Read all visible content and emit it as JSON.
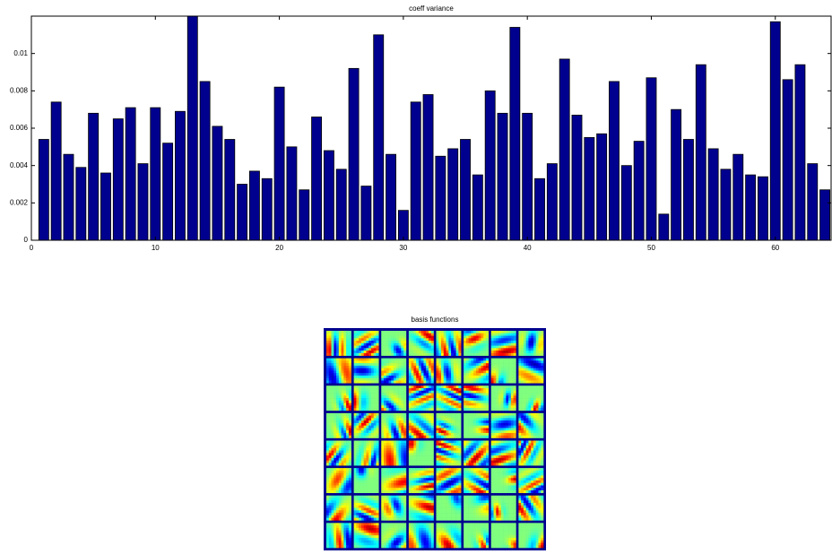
{
  "chart_data": [
    {
      "type": "bar",
      "title": "coeff variance",
      "x": [
        1,
        2,
        3,
        4,
        5,
        6,
        7,
        8,
        9,
        10,
        11,
        12,
        13,
        14,
        15,
        16,
        17,
        18,
        19,
        20,
        21,
        22,
        23,
        24,
        25,
        26,
        27,
        28,
        29,
        30,
        31,
        32,
        33,
        34,
        35,
        36,
        37,
        38,
        39,
        40,
        41,
        42,
        43,
        44,
        45,
        46,
        47,
        48,
        49,
        50,
        51,
        52,
        53,
        54,
        55,
        56,
        57,
        58,
        59,
        60,
        61,
        62,
        63,
        64
      ],
      "values": [
        0.0054,
        0.0074,
        0.0046,
        0.0039,
        0.0068,
        0.0036,
        0.0065,
        0.0071,
        0.0041,
        0.0071,
        0.0052,
        0.0069,
        0.012,
        0.0085,
        0.0061,
        0.0054,
        0.003,
        0.0037,
        0.0033,
        0.0082,
        0.005,
        0.0027,
        0.0066,
        0.0048,
        0.0038,
        0.0092,
        0.0029,
        0.011,
        0.0046,
        0.0016,
        0.0074,
        0.0078,
        0.0045,
        0.0049,
        0.0054,
        0.0035,
        0.008,
        0.0068,
        0.0114,
        0.0068,
        0.0033,
        0.0041,
        0.0097,
        0.0067,
        0.0055,
        0.0057,
        0.0085,
        0.004,
        0.0053,
        0.0087,
        0.0014,
        0.007,
        0.0054,
        0.0094,
        0.0049,
        0.0038,
        0.0046,
        0.0035,
        0.0034,
        0.0117,
        0.0086,
        0.0094,
        0.0041,
        0.0027
      ],
      "color": "#00008f",
      "xlim": [
        0,
        64.5
      ],
      "xticks": [
        0,
        10,
        20,
        30,
        40,
        50,
        60
      ],
      "ylim": [
        0,
        0.012
      ],
      "yticks": [
        0,
        0.002,
        0.004,
        0.006,
        0.008,
        0.01
      ]
    },
    {
      "type": "image",
      "title": "basis functions"
    }
  ]
}
